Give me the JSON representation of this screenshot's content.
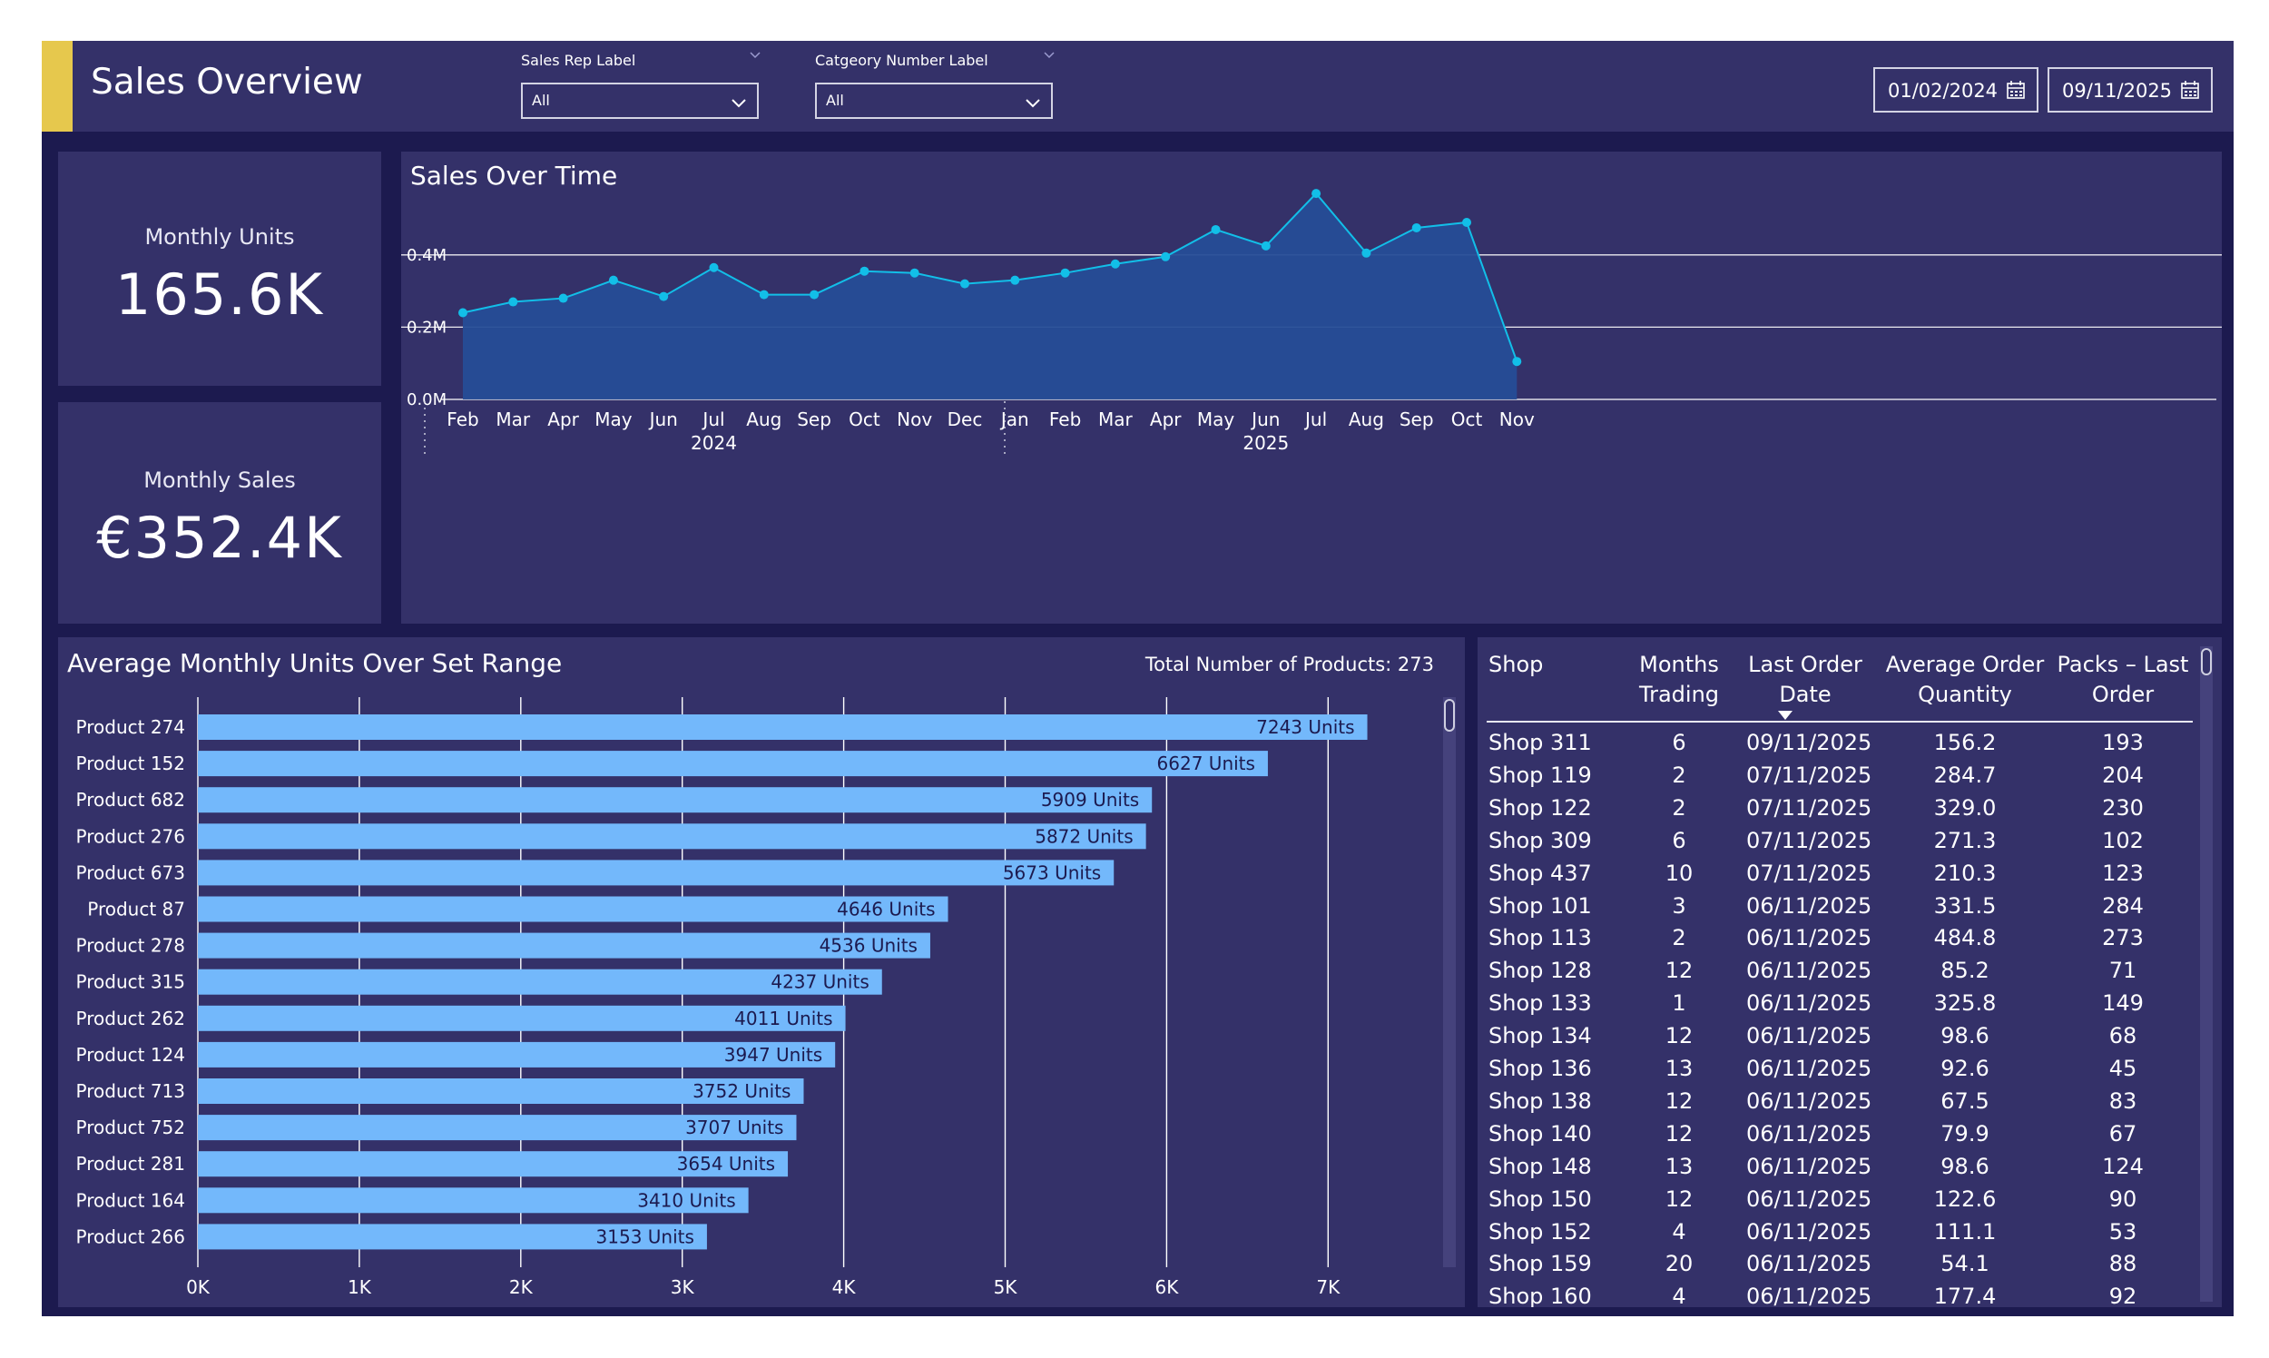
{
  "header": {
    "title": "Sales Overview",
    "accent_color": "#e6c84d",
    "slicers": [
      {
        "label": "Sales Rep Label",
        "value": "All"
      },
      {
        "label": "Catgeory Number Label",
        "value": "All"
      }
    ],
    "date_from": "01/02/2024",
    "date_to": "09/11/2025"
  },
  "kpis": {
    "units_label": "Monthly Units",
    "units_value": "165.6K",
    "sales_label": "Monthly Sales",
    "sales_value": "€352.4K"
  },
  "sales_chart_title": "Sales Over Time",
  "bar_chart_title": "Average Monthly Units Over Set Range",
  "bar_chart_total": "Total Number of Products: 273",
  "table": {
    "headers": [
      "Shop",
      "Months Trading",
      "Last Order Date",
      "Average Order Quantity",
      "Packs – Last Order"
    ],
    "sorted_column": "Last Order Date",
    "rows": [
      [
        "Shop 311",
        "6",
        "09/11/2025",
        "156.2",
        "193"
      ],
      [
        "Shop 119",
        "2",
        "07/11/2025",
        "284.7",
        "204"
      ],
      [
        "Shop 122",
        "2",
        "07/11/2025",
        "329.0",
        "230"
      ],
      [
        "Shop 309",
        "6",
        "07/11/2025",
        "271.3",
        "102"
      ],
      [
        "Shop 437",
        "10",
        "07/11/2025",
        "210.3",
        "123"
      ],
      [
        "Shop 101",
        "3",
        "06/11/2025",
        "331.5",
        "284"
      ],
      [
        "Shop 113",
        "2",
        "06/11/2025",
        "484.8",
        "273"
      ],
      [
        "Shop 128",
        "12",
        "06/11/2025",
        "85.2",
        "71"
      ],
      [
        "Shop 133",
        "1",
        "06/11/2025",
        "325.8",
        "149"
      ],
      [
        "Shop 134",
        "12",
        "06/11/2025",
        "98.6",
        "68"
      ],
      [
        "Shop 136",
        "13",
        "06/11/2025",
        "92.6",
        "45"
      ],
      [
        "Shop 138",
        "12",
        "06/11/2025",
        "67.5",
        "83"
      ],
      [
        "Shop 140",
        "12",
        "06/11/2025",
        "79.9",
        "67"
      ],
      [
        "Shop 148",
        "13",
        "06/11/2025",
        "98.6",
        "124"
      ],
      [
        "Shop 150",
        "12",
        "06/11/2025",
        "122.6",
        "90"
      ],
      [
        "Shop 152",
        "4",
        "06/11/2025",
        "111.1",
        "53"
      ],
      [
        "Shop 159",
        "20",
        "06/11/2025",
        "54.1",
        "88"
      ],
      [
        "Shop 160",
        "4",
        "06/11/2025",
        "177.4",
        "92"
      ]
    ]
  },
  "chart_data": [
    {
      "type": "area",
      "title": "Sales Over Time",
      "x": [
        "Feb",
        "Mar",
        "Apr",
        "May",
        "Jun",
        "Jul",
        "Aug",
        "Sep",
        "Oct",
        "Nov",
        "Dec",
        "Jan",
        "Feb",
        "Mar",
        "Apr",
        "May",
        "Jun",
        "Jul",
        "Aug",
        "Sep",
        "Oct",
        "Nov"
      ],
      "year_labels": [
        {
          "label": "2024",
          "under": "Jul"
        },
        {
          "label": "2025",
          "under": "Jun"
        }
      ],
      "values": [
        0.24,
        0.27,
        0.28,
        0.33,
        0.285,
        0.365,
        0.29,
        0.29,
        0.355,
        0.35,
        0.32,
        0.33,
        0.35,
        0.375,
        0.395,
        0.47,
        0.425,
        0.57,
        0.405,
        0.475,
        0.49,
        0.105
      ],
      "yticks": [
        0,
        0.2,
        0.4
      ],
      "ytick_labels": [
        "0.0M",
        "0.2M",
        "0.4M"
      ],
      "ylim": [
        0,
        0.6
      ],
      "grid": true,
      "color": "#12bfe8"
    },
    {
      "type": "bar",
      "orientation": "horizontal",
      "title": "Average Monthly Units Over Set Range",
      "categories": [
        "Product 274",
        "Product 152",
        "Product 682",
        "Product 276",
        "Product 673",
        "Product 87",
        "Product 278",
        "Product 315",
        "Product 262",
        "Product 124",
        "Product 713",
        "Product 752",
        "Product 281",
        "Product 164",
        "Product 266"
      ],
      "values": [
        7243,
        6627,
        5909,
        5872,
        5673,
        4646,
        4536,
        4237,
        4011,
        3947,
        3752,
        3707,
        3654,
        3410,
        3153
      ],
      "value_suffix": " Units",
      "xticks": [
        0,
        1000,
        2000,
        3000,
        4000,
        5000,
        6000,
        7000
      ],
      "xtick_labels": [
        "0K",
        "1K",
        "2K",
        "3K",
        "4K",
        "5K",
        "6K",
        "7K"
      ],
      "xlim": [
        0,
        7800
      ],
      "grid": true,
      "color": "#73b8fb"
    }
  ]
}
